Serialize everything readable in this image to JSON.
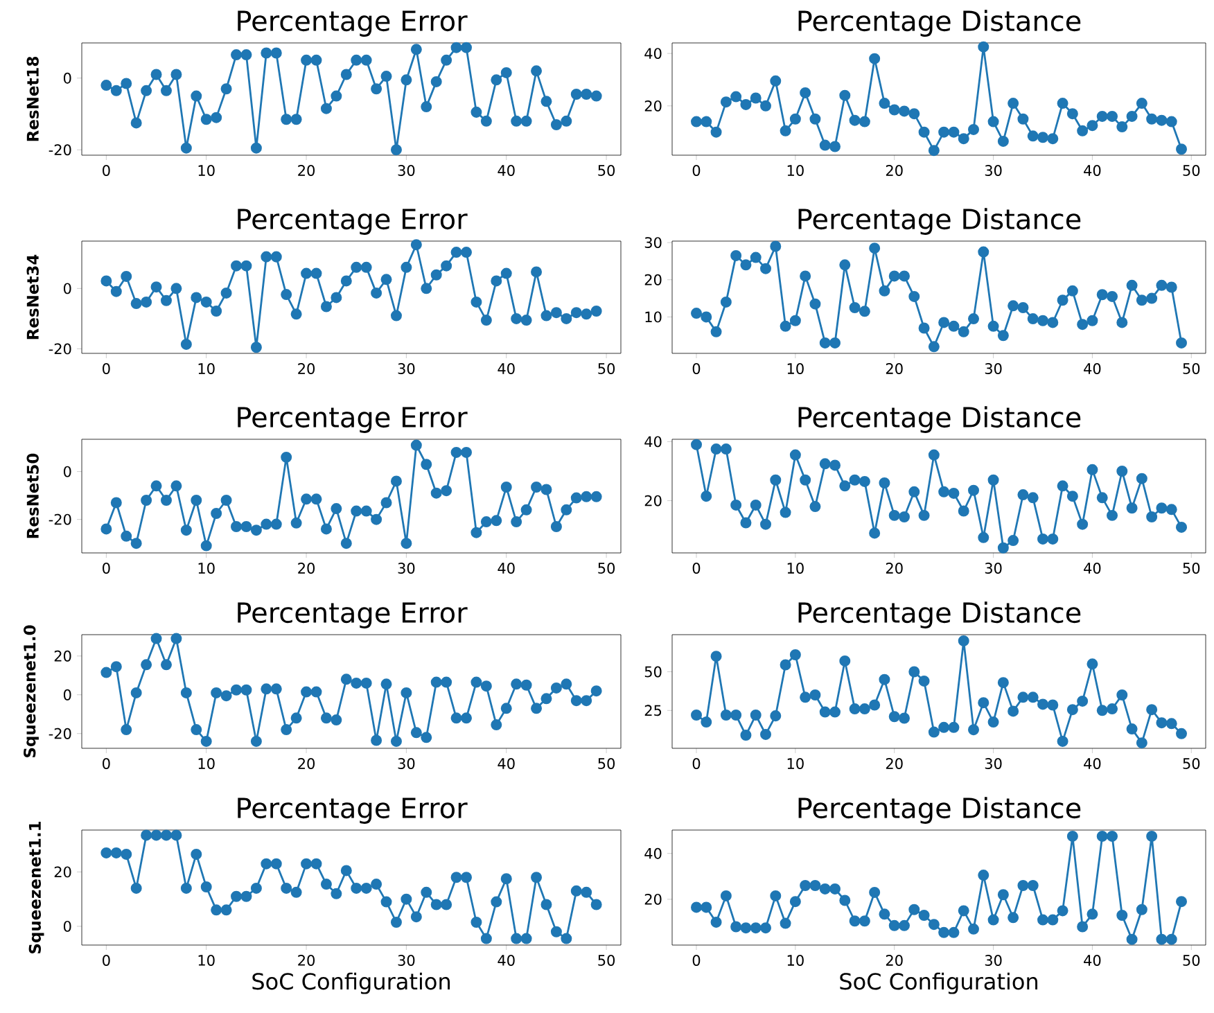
{
  "chart_data": [
    {
      "type": "line",
      "title": "Percentage Error",
      "ylabel": "ResNet18",
      "color": "#1f77b4",
      "marker": "circle",
      "xlim": [
        -2.45,
        51.45
      ],
      "ylim": [
        -21.5,
        9.8
      ],
      "xticks": [
        0,
        10,
        20,
        30,
        40,
        50
      ],
      "yticks": [
        -20,
        0
      ],
      "x": [
        0,
        1,
        2,
        3,
        4,
        5,
        6,
        7,
        8,
        9,
        10,
        11,
        12,
        13,
        14,
        15,
        16,
        17,
        18,
        19,
        20,
        21,
        22,
        23,
        24,
        25,
        26,
        27,
        28,
        29,
        30,
        31,
        32,
        33,
        34,
        35,
        36,
        37,
        38,
        39,
        40,
        41,
        42,
        43,
        44,
        45,
        46,
        47,
        48,
        49
      ],
      "values": [
        -2,
        -3.5,
        -1.5,
        -12.5,
        -3.5,
        1,
        -3.5,
        1,
        -19.5,
        -5,
        -11.5,
        -11,
        -3,
        6.5,
        6.5,
        -19.5,
        7,
        7,
        -11.5,
        -11.5,
        5,
        5,
        -8.5,
        -5,
        1,
        5,
        5,
        -3,
        0.5,
        -20,
        -0.5,
        8,
        -8,
        -1,
        5,
        8.5,
        8.5,
        -9.5,
        -12,
        -0.5,
        1.5,
        -12,
        -12,
        2,
        -6.5,
        -13,
        -12,
        -4.5,
        -4.5,
        -5
      ]
    },
    {
      "type": "line",
      "title": "Percentage Distance",
      "color": "#1f77b4",
      "marker": "circle",
      "xlim": [
        -2.45,
        51.45
      ],
      "ylim": [
        1.2,
        44
      ],
      "xticks": [
        0,
        10,
        20,
        30,
        40,
        50
      ],
      "yticks": [
        20,
        40
      ],
      "x": [
        0,
        1,
        2,
        3,
        4,
        5,
        6,
        7,
        8,
        9,
        10,
        11,
        12,
        13,
        14,
        15,
        16,
        17,
        18,
        19,
        20,
        21,
        22,
        23,
        24,
        25,
        26,
        27,
        28,
        29,
        30,
        31,
        32,
        33,
        34,
        35,
        36,
        37,
        38,
        39,
        40,
        41,
        42,
        43,
        44,
        45,
        46,
        47,
        48,
        49
      ],
      "values": [
        14,
        14,
        10,
        21.5,
        23.5,
        20.5,
        23,
        20,
        29.5,
        10.5,
        15,
        25,
        15,
        5,
        4.5,
        24,
        14.5,
        14,
        38,
        21,
        18.5,
        18,
        17,
        10,
        3,
        10,
        10,
        7.5,
        11,
        42.5,
        14,
        6.5,
        21,
        15,
        8.5,
        8,
        7.5,
        21,
        17,
        10.5,
        12.5,
        16,
        16,
        12,
        16,
        21,
        15,
        14.5,
        14,
        3.5
      ]
    },
    {
      "type": "line",
      "title": "Percentage Error",
      "ylabel": "ResNet34",
      "color": "#1f77b4",
      "marker": "circle",
      "xlim": [
        -2.45,
        51.45
      ],
      "ylim": [
        -21.5,
        15.7
      ],
      "xticks": [
        0,
        10,
        20,
        30,
        40,
        50
      ],
      "yticks": [
        -20,
        0
      ],
      "x": [
        0,
        1,
        2,
        3,
        4,
        5,
        6,
        7,
        8,
        9,
        10,
        11,
        12,
        13,
        14,
        15,
        16,
        17,
        18,
        19,
        20,
        21,
        22,
        23,
        24,
        25,
        26,
        27,
        28,
        29,
        30,
        31,
        32,
        33,
        34,
        35,
        36,
        37,
        38,
        39,
        40,
        41,
        42,
        43,
        44,
        45,
        46,
        47,
        48,
        49
      ],
      "values": [
        2.5,
        -1,
        4,
        -5,
        -4.5,
        0.5,
        -4,
        0,
        -18.5,
        -3,
        -4.5,
        -7.5,
        -1.5,
        7.5,
        7.5,
        -19.5,
        10.5,
        10.5,
        -2,
        -8.5,
        5,
        5,
        -6,
        -3,
        2.5,
        7,
        7,
        -1.5,
        3,
        -9,
        7,
        14.5,
        0,
        4.5,
        7.5,
        12,
        12,
        -4.5,
        -10.5,
        2.5,
        5,
        -10,
        -10.5,
        5.5,
        -9,
        -8,
        -10,
        -8,
        -8.5,
        -7.5
      ]
    },
    {
      "type": "line",
      "title": "Percentage Distance",
      "color": "#1f77b4",
      "marker": "circle",
      "xlim": [
        -2.45,
        51.45
      ],
      "ylim": [
        0.2,
        30.4
      ],
      "xticks": [
        0,
        10,
        20,
        30,
        40,
        50
      ],
      "yticks": [
        10,
        20,
        30
      ],
      "x": [
        0,
        1,
        2,
        3,
        4,
        5,
        6,
        7,
        8,
        9,
        10,
        11,
        12,
        13,
        14,
        15,
        16,
        17,
        18,
        19,
        20,
        21,
        22,
        23,
        24,
        25,
        26,
        27,
        28,
        29,
        30,
        31,
        32,
        33,
        34,
        35,
        36,
        37,
        38,
        39,
        40,
        41,
        42,
        43,
        44,
        45,
        46,
        47,
        48,
        49
      ],
      "values": [
        11,
        10,
        6,
        14,
        26.5,
        24,
        26,
        23,
        29,
        7.5,
        9,
        21,
        13.5,
        3,
        3,
        24,
        12.5,
        11.5,
        28.5,
        17,
        21,
        21,
        15.5,
        7,
        2,
        8.5,
        7.5,
        6,
        9.5,
        27.5,
        7.5,
        5,
        13,
        12.5,
        9.5,
        9,
        8.5,
        14.5,
        17,
        8,
        9,
        16,
        15.5,
        8.5,
        18.5,
        14.5,
        15,
        18.5,
        18,
        3
      ]
    },
    {
      "type": "line",
      "title": "Percentage Error",
      "ylabel": "ResNet50",
      "color": "#1f77b4",
      "marker": "circle",
      "xlim": [
        -2.45,
        51.45
      ],
      "ylim": [
        -34,
        13.5
      ],
      "xticks": [
        0,
        10,
        20,
        30,
        40,
        50
      ],
      "yticks": [
        -20,
        0
      ],
      "x": [
        0,
        1,
        2,
        3,
        4,
        5,
        6,
        7,
        8,
        9,
        10,
        11,
        12,
        13,
        14,
        15,
        16,
        17,
        18,
        19,
        20,
        21,
        22,
        23,
        24,
        25,
        26,
        27,
        28,
        29,
        30,
        31,
        32,
        33,
        34,
        35,
        36,
        37,
        38,
        39,
        40,
        41,
        42,
        43,
        44,
        45,
        46,
        47,
        48,
        49
      ],
      "values": [
        -24,
        -13,
        -27,
        -30,
        -12,
        -6,
        -12,
        -6,
        -24.5,
        -12,
        -31,
        -17.5,
        -12,
        -23,
        -23,
        -24.5,
        -22,
        -22,
        6,
        -21.5,
        -11.5,
        -11.5,
        -24,
        -15.5,
        -30,
        -16.5,
        -16.5,
        -20,
        -13,
        -4,
        -30,
        11,
        3,
        -9,
        -8,
        8,
        8,
        -25.5,
        -21,
        -20.5,
        -6.5,
        -21,
        -16,
        -6.5,
        -7.5,
        -23,
        -16,
        -11,
        -10.5,
        -10.5
      ]
    },
    {
      "type": "line",
      "title": "Percentage Distance",
      "color": "#1f77b4",
      "marker": "circle",
      "xlim": [
        -2.45,
        51.45
      ],
      "ylim": [
        2.3,
        40.8
      ],
      "xticks": [
        0,
        10,
        20,
        30,
        40,
        50
      ],
      "yticks": [
        20,
        40
      ],
      "x": [
        0,
        1,
        2,
        3,
        4,
        5,
        6,
        7,
        8,
        9,
        10,
        11,
        12,
        13,
        14,
        15,
        16,
        17,
        18,
        19,
        20,
        21,
        22,
        23,
        24,
        25,
        26,
        27,
        28,
        29,
        30,
        31,
        32,
        33,
        34,
        35,
        36,
        37,
        38,
        39,
        40,
        41,
        42,
        43,
        44,
        45,
        46,
        47,
        48,
        49
      ],
      "values": [
        39,
        21.5,
        37.5,
        37.5,
        18.5,
        12.5,
        18.5,
        12,
        27,
        16,
        35.5,
        27,
        18,
        32.5,
        32,
        25,
        27,
        26.5,
        9,
        26,
        15,
        14.5,
        23,
        15,
        35.5,
        23,
        22.5,
        16.5,
        23.5,
        7.5,
        27,
        4,
        6.5,
        22,
        21,
        7,
        7,
        25,
        21.5,
        12,
        30.5,
        21,
        15,
        30,
        17.5,
        27.5,
        14.5,
        17.5,
        17,
        11
      ]
    },
    {
      "type": "line",
      "title": "Percentage Error",
      "ylabel": "Squeezenet1.0",
      "color": "#1f77b4",
      "marker": "circle",
      "xlim": [
        -2.45,
        51.45
      ],
      "ylim": [
        -27.6,
        31
      ],
      "xticks": [
        0,
        10,
        20,
        30,
        40,
        50
      ],
      "yticks": [
        -20,
        0,
        20
      ],
      "x": [
        0,
        1,
        2,
        3,
        4,
        5,
        6,
        7,
        8,
        9,
        10,
        11,
        12,
        13,
        14,
        15,
        16,
        17,
        18,
        19,
        20,
        21,
        22,
        23,
        24,
        25,
        26,
        27,
        28,
        29,
        30,
        31,
        32,
        33,
        34,
        35,
        36,
        37,
        38,
        39,
        40,
        41,
        42,
        43,
        44,
        45,
        46,
        47,
        48,
        49
      ],
      "values": [
        11.5,
        14.5,
        -18,
        1,
        15.5,
        29,
        15.5,
        29,
        1,
        -18,
        -24,
        1,
        -0.5,
        2.5,
        2.5,
        -24,
        3,
        3,
        -18,
        -12,
        1.5,
        1.5,
        -12,
        -13,
        8,
        6,
        6,
        -23.5,
        5.5,
        -24,
        1,
        -19.5,
        -22,
        6.5,
        6.5,
        -12,
        -12,
        6.5,
        4.5,
        -15.5,
        -7,
        5.5,
        5,
        -7,
        -2,
        3.5,
        5.5,
        -3,
        -3,
        2
      ]
    },
    {
      "type": "line",
      "title": "Percentage Distance",
      "color": "#1f77b4",
      "marker": "circle",
      "xlim": [
        -2.45,
        51.45
      ],
      "ylim": [
        0.5,
        74
      ],
      "xticks": [
        0,
        10,
        20,
        30,
        40,
        50
      ],
      "yticks": [
        25,
        50
      ],
      "x": [
        0,
        1,
        2,
        3,
        4,
        5,
        6,
        7,
        8,
        9,
        10,
        11,
        12,
        13,
        14,
        15,
        16,
        17,
        18,
        19,
        20,
        21,
        22,
        23,
        24,
        25,
        26,
        27,
        28,
        29,
        30,
        31,
        32,
        33,
        34,
        35,
        36,
        37,
        38,
        39,
        40,
        41,
        42,
        43,
        44,
        45,
        46,
        47,
        48,
        49
      ],
      "values": [
        22,
        17.5,
        60,
        22,
        22,
        9,
        22,
        9.5,
        21.5,
        54.5,
        61,
        33.5,
        35,
        24,
        24,
        57,
        26,
        26,
        28.5,
        45,
        21,
        20,
        50,
        44,
        11,
        14,
        14,
        70,
        12.5,
        30,
        17.5,
        43,
        24.5,
        33.5,
        33.5,
        29,
        28.5,
        5,
        25.5,
        31,
        55,
        25,
        26,
        35,
        13,
        4,
        25.5,
        17,
        16.5,
        10
      ]
    },
    {
      "type": "line",
      "title": "Percentage Error",
      "ylabel": "Squeezenet1.1",
      "xlabel": "SoC Configuration",
      "color": "#1f77b4",
      "marker": "circle",
      "xlim": [
        -2.45,
        51.45
      ],
      "ylim": [
        -6.9,
        35.4
      ],
      "xticks": [
        0,
        10,
        20,
        30,
        40,
        50
      ],
      "yticks": [
        0,
        20
      ],
      "x": [
        0,
        1,
        2,
        3,
        4,
        5,
        6,
        7,
        8,
        9,
        10,
        11,
        12,
        13,
        14,
        15,
        16,
        17,
        18,
        19,
        20,
        21,
        22,
        23,
        24,
        25,
        26,
        27,
        28,
        29,
        30,
        31,
        32,
        33,
        34,
        35,
        36,
        37,
        38,
        39,
        40,
        41,
        42,
        43,
        44,
        45,
        46,
        47,
        48,
        49
      ],
      "values": [
        27,
        27,
        26.5,
        14,
        33.5,
        33.5,
        33.5,
        33.5,
        14,
        26.5,
        14.5,
        6,
        6,
        11,
        11,
        14,
        23,
        23,
        14,
        12.5,
        23,
        23,
        15.5,
        12,
        20.5,
        14,
        14,
        15.5,
        9,
        1.5,
        10,
        3.5,
        12.5,
        8,
        8,
        18,
        18,
        1.5,
        -4.5,
        9,
        17.5,
        -4.5,
        -4.5,
        18,
        8,
        -2,
        -4.5,
        13,
        12.5,
        8
      ]
    },
    {
      "type": "line",
      "title": "Percentage Distance",
      "xlabel": "SoC Configuration",
      "color": "#1f77b4",
      "marker": "circle",
      "xlim": [
        -2.45,
        51.45
      ],
      "ylim": [
        0,
        50.2
      ],
      "xticks": [
        0,
        10,
        20,
        30,
        40,
        50
      ],
      "yticks": [
        20,
        40
      ],
      "x": [
        0,
        1,
        2,
        3,
        4,
        5,
        6,
        7,
        8,
        9,
        10,
        11,
        12,
        13,
        14,
        15,
        16,
        17,
        18,
        19,
        20,
        21,
        22,
        23,
        24,
        25,
        26,
        27,
        28,
        29,
        30,
        31,
        32,
        33,
        34,
        35,
        36,
        37,
        38,
        39,
        40,
        41,
        42,
        43,
        44,
        45,
        46,
        47,
        48,
        49
      ],
      "values": [
        16.5,
        16.5,
        10,
        21.5,
        8,
        7.5,
        7.5,
        7.5,
        21.5,
        9.5,
        19,
        26,
        26,
        24.5,
        24.5,
        19.5,
        10.5,
        10.5,
        23,
        13.5,
        8.5,
        8.5,
        15.5,
        13,
        9,
        5.5,
        5.5,
        15,
        7,
        30.5,
        11,
        22,
        12,
        26,
        26,
        11,
        11,
        15,
        47.5,
        8,
        13.5,
        47.5,
        47.5,
        13,
        2.5,
        15.5,
        47.5,
        2.5,
        2.5,
        19
      ]
    }
  ]
}
